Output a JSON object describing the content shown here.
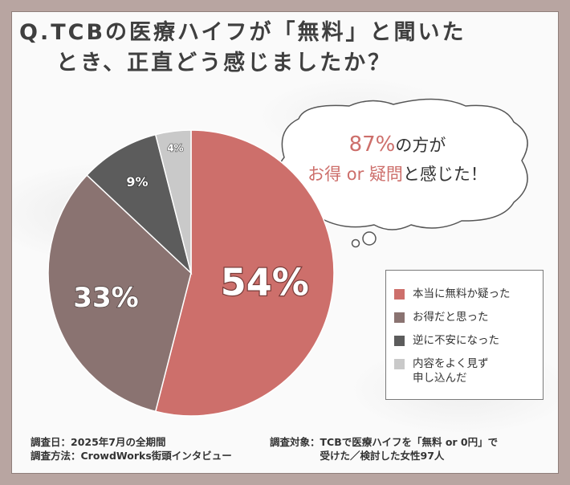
{
  "title": {
    "line1": "Q.TCBの医療ハイフが「無料」と聞いた",
    "line2": "とき、正直どう感じましたか？"
  },
  "callout": {
    "pct": "87%",
    "text1": "の方が",
    "a1": "お得",
    "mid": " or ",
    "a2": "疑問",
    "text2": "と感じた！"
  },
  "footer": {
    "date": "調査日：2025年7月の全期間",
    "method": "調査方法：CrowdWorks街頭インタビュー",
    "target1": "調査対象：TCBで医療ハイフを「無料 or 0円」で",
    "target2": "　　　　　受けた／検討した女性97人"
  },
  "chart_data": {
    "type": "pie",
    "start_angle_deg": 0,
    "direction": "clockwise",
    "slices": [
      {
        "label": "本当に無料か疑った",
        "value": 54,
        "value_label": "54%",
        "color": "#cd6f6b"
      },
      {
        "label": "お得だと思った",
        "value": 33,
        "value_label": "33%",
        "color": "#8a7371"
      },
      {
        "label": "逆に不安になった",
        "value": 9,
        "value_label": "9%",
        "color": "#5c5c5c"
      },
      {
        "label": "内容をよく見ず\n申し込んだ",
        "value": 4,
        "value_label": "4%",
        "color": "#c9c9c9"
      }
    ],
    "legend_position": "right"
  }
}
